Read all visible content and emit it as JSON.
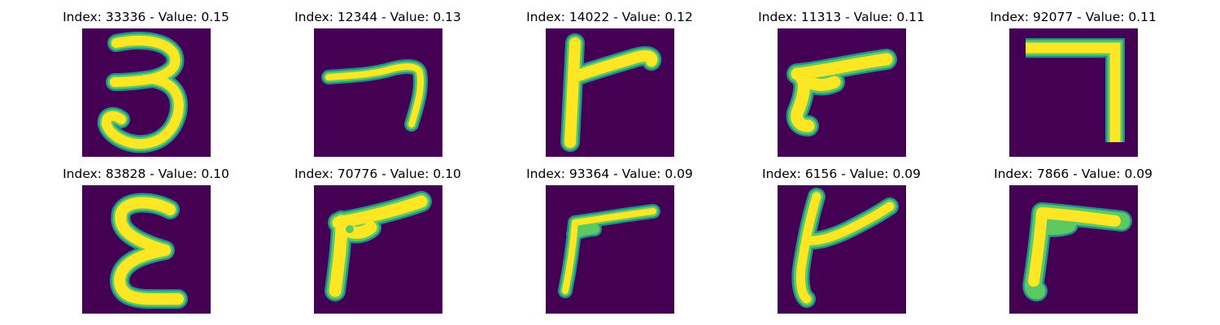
{
  "colors": {
    "background": "#440154",
    "stroke_core": "#fde725",
    "stroke_mid": "#5ec962",
    "stroke_edge": "#21918c"
  },
  "grid": [
    {
      "title": "Index: 33336 - Value: 0.15",
      "glyph": "digit-three"
    },
    {
      "title": "Index: 12344 - Value: 0.13",
      "glyph": "digit-seven-slanted"
    },
    {
      "title": "Index: 14022 - Value: 0.12",
      "glyph": "hooked-stroke"
    },
    {
      "title": "Index: 11313 - Value: 0.11",
      "glyph": "wedge-stroke"
    },
    {
      "title": "Index: 92077 - Value: 0.11",
      "glyph": "digit-seven-upright"
    },
    {
      "title": "Index: 83828 - Value: 0.10",
      "glyph": "epsilon-shape"
    },
    {
      "title": "Index: 70776 - Value: 0.10",
      "glyph": "wedge-stroke-loop"
    },
    {
      "title": "Index: 93364 - Value: 0.09",
      "glyph": "hooked-stroke-thin"
    },
    {
      "title": "Index: 6156 - Value: 0.09",
      "glyph": "hooked-stroke-curved"
    },
    {
      "title": "Index: 7866 - Value: 0.09",
      "glyph": "hooked-stroke-bold"
    }
  ]
}
